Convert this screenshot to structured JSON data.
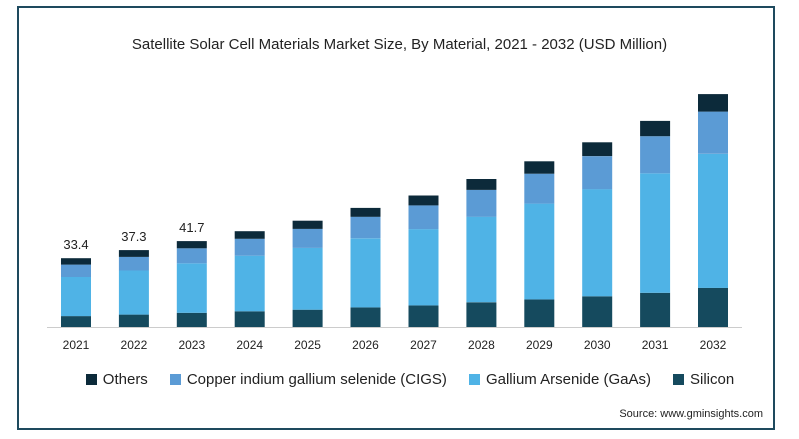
{
  "chart_data": {
    "type": "bar",
    "stacked": true,
    "title": "Satellite Solar Cell Materials Market Size, By Material, 2021 - 2032 (USD Million)",
    "categories": [
      "2021",
      "2022",
      "2023",
      "2024",
      "2025",
      "2026",
      "2027",
      "2028",
      "2029",
      "2030",
      "2031",
      "2032"
    ],
    "series": [
      {
        "name": "Silicon",
        "color": "#154a5e",
        "values": [
          5.3,
          6.0,
          6.9,
          7.6,
          8.4,
          9.5,
          10.5,
          12.0,
          13.4,
          14.9,
          16.6,
          19.0
        ]
      },
      {
        "name": "Gallium Arsenide (GaAs)",
        "color": "#4fb3e6",
        "values": [
          19.0,
          21.4,
          24.0,
          27.0,
          30.0,
          33.5,
          37.0,
          41.5,
          46.5,
          52.0,
          58.0,
          65.0
        ]
      },
      {
        "name": "Copper indium gallium selenide (CIGS)",
        "color": "#5b9bd5",
        "values": [
          6.0,
          6.6,
          7.3,
          8.2,
          9.2,
          10.5,
          11.5,
          13.0,
          14.5,
          16.0,
          18.0,
          20.5
        ]
      },
      {
        "name": "Others",
        "color": "#0c2a3a",
        "values": [
          3.1,
          3.3,
          3.5,
          3.7,
          4.0,
          4.3,
          4.8,
          5.3,
          6.0,
          6.7,
          7.4,
          8.5
        ]
      }
    ],
    "data_labels": [
      {
        "category": "2021",
        "text": "33.4"
      },
      {
        "category": "2022",
        "text": "37.3"
      },
      {
        "category": "2023",
        "text": "41.7"
      }
    ],
    "ylim": [
      0,
      115
    ],
    "grid": false,
    "legend_position": "bottom"
  },
  "source": "Source: www.gminsights.com"
}
